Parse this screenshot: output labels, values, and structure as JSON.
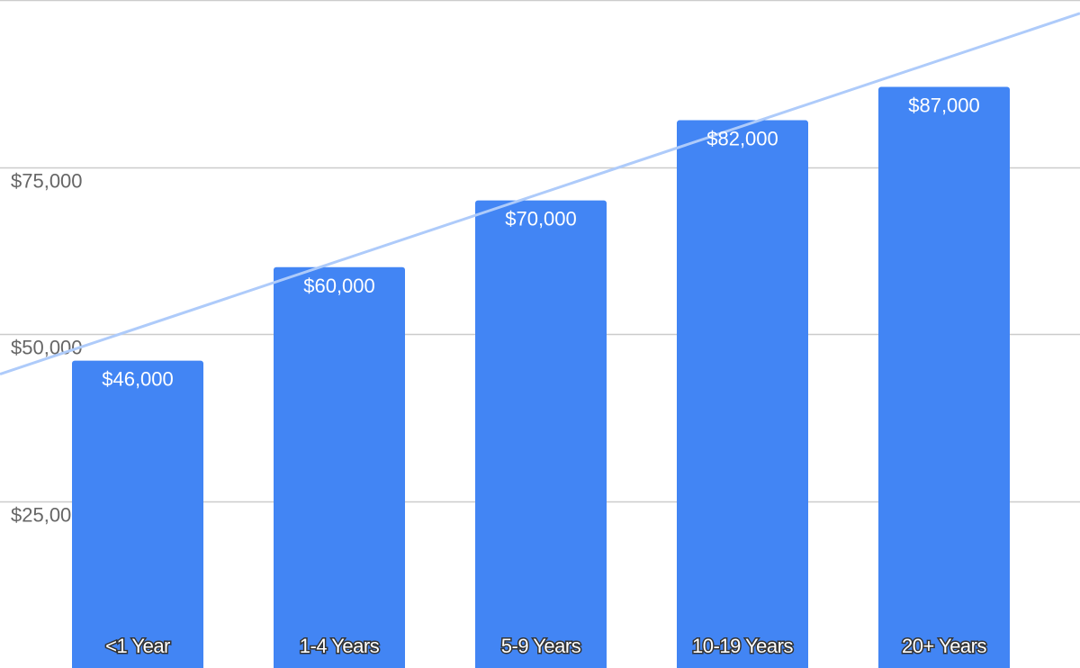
{
  "chart_data": {
    "type": "bar",
    "title": "",
    "xlabel": "",
    "ylabel": "",
    "categories": [
      "<1 Year",
      "1-4 Years",
      "5-9 Years",
      "10-19 Years",
      "20+ Years"
    ],
    "values": [
      46000,
      60000,
      70000,
      82000,
      87000
    ],
    "value_labels": [
      "$46,000",
      "$60,000",
      "$70,000",
      "$82,000",
      "$87,000"
    ],
    "y_ticks": [
      25000,
      50000,
      75000,
      100000
    ],
    "y_tick_labels": [
      "$25,000",
      "$50,000",
      "$75,000",
      ""
    ],
    "ylim": [
      0,
      100000
    ],
    "grid": true,
    "legend": "none",
    "trendline": {
      "type": "linear",
      "y_at_first_edge": 44000,
      "y_at_last_edge": 98000
    },
    "colors": {
      "bar": "#4285f4",
      "trendline": "#aecbfa",
      "grid": "#cccccc",
      "tick_text": "#666666",
      "bar_text": "#ffffff"
    }
  }
}
